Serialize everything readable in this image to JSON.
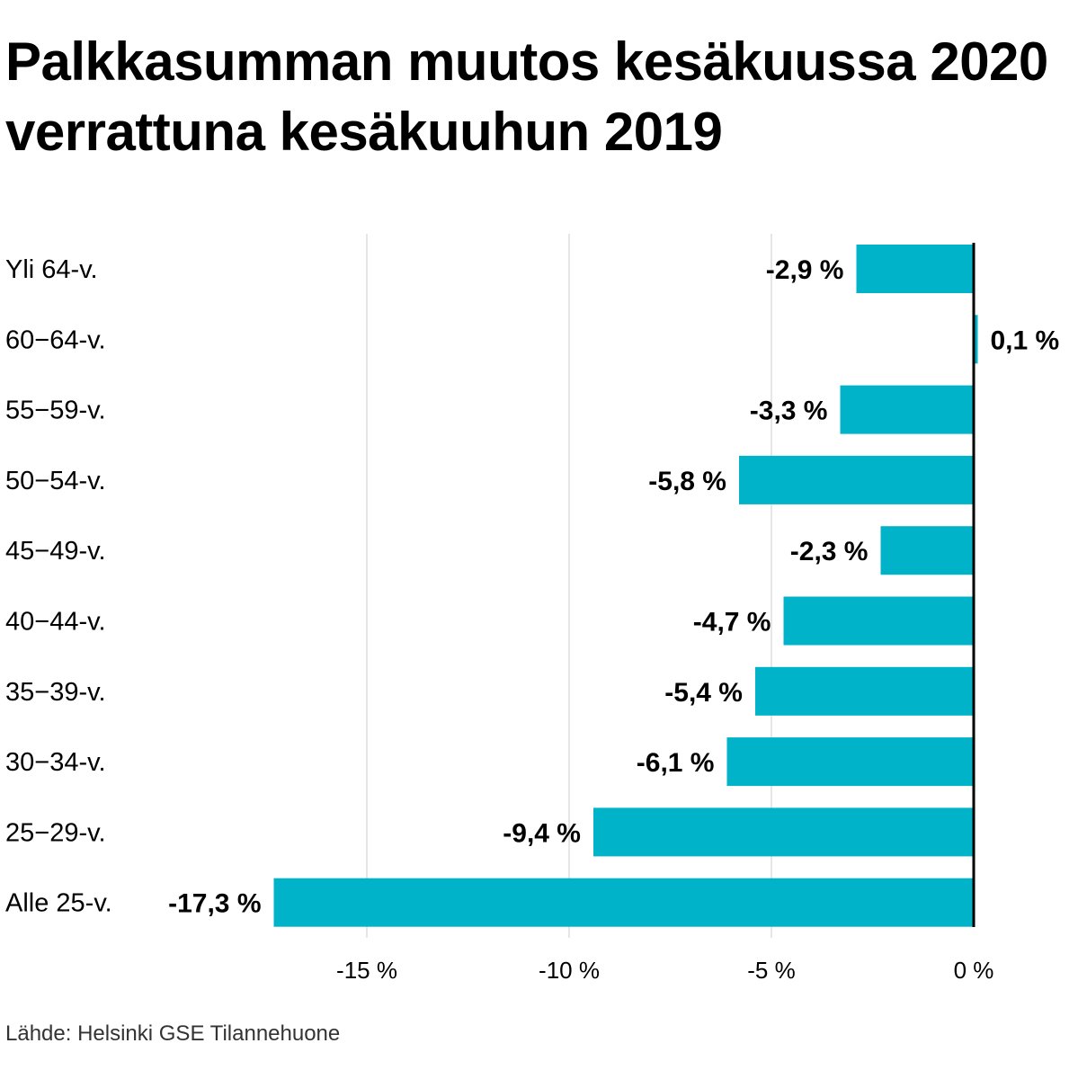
{
  "title": "Palkkasumman muutos kesäkuussa 2020 verrattuna kesäkuuhun 2019",
  "source": "Lähde: Helsinki GSE Tilannehuone",
  "colors": {
    "bar": "#00b3c8",
    "grid": "#dddddd",
    "axis": "#000000",
    "text": "#000000"
  },
  "chart_data": {
    "type": "bar",
    "orientation": "horizontal",
    "categories": [
      "Yli 64-v.",
      "60−64-v.",
      "55−59-v.",
      "50−54-v.",
      "45−49-v.",
      "40−44-v.",
      "35−39-v.",
      "30−34-v.",
      "25−29-v.",
      "Alle 25-v."
    ],
    "values": [
      -2.9,
      0.1,
      -3.3,
      -5.8,
      -2.3,
      -4.7,
      -5.4,
      -6.1,
      -9.4,
      -17.3
    ],
    "data_labels": [
      "-2,9 %",
      "0,1 %",
      "-3,3 %",
      "-5,8 %",
      "-2,3 %",
      "-4,7 %",
      "-5,4 %",
      "-6,1 %",
      "-9,4 %",
      "-17,3 %"
    ],
    "x_ticks": [
      -15,
      -10,
      -5,
      0
    ],
    "x_tick_labels": [
      "-15 %",
      "-10 %",
      "-5 %",
      "0 %"
    ],
    "xlim": [
      -20,
      0.1
    ],
    "grid": true
  }
}
